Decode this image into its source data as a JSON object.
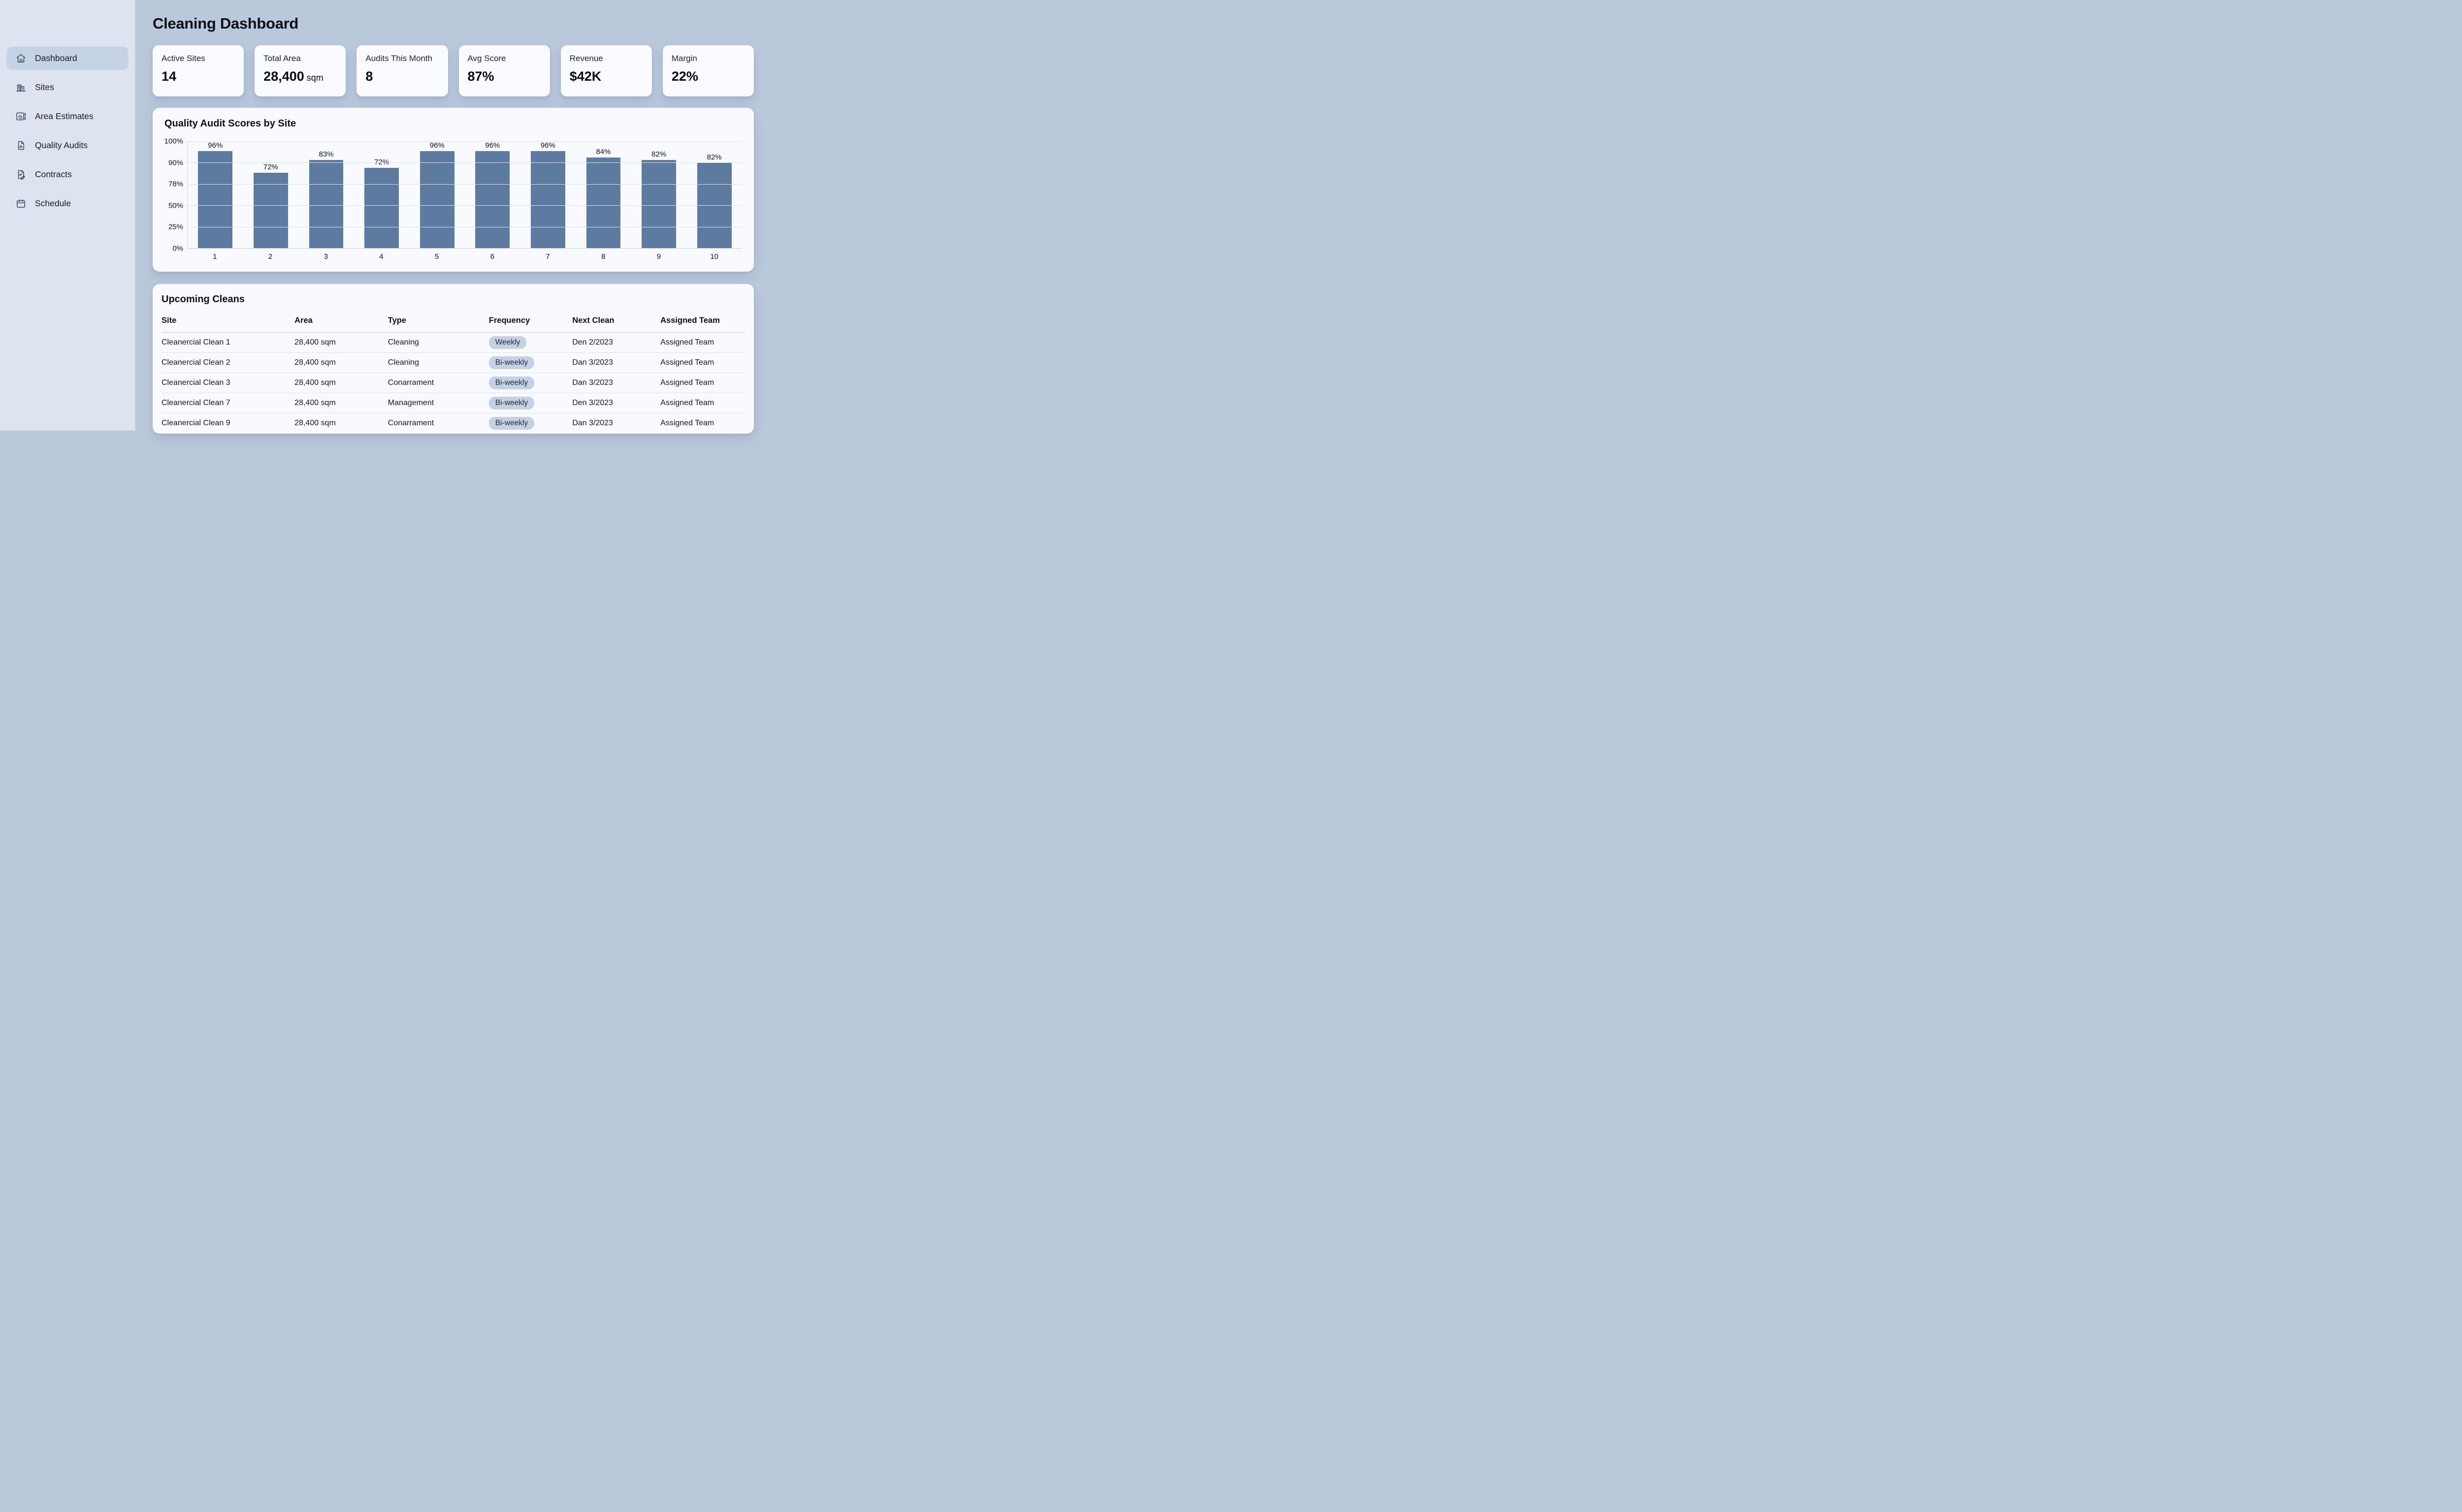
{
  "app": {
    "title": "Cleaning Dashboard"
  },
  "sidebar": {
    "items": [
      {
        "label": "Dashboard",
        "icon": "home-icon",
        "active": true
      },
      {
        "label": "Sites",
        "icon": "building-icon",
        "active": false
      },
      {
        "label": "Area Estimates",
        "icon": "area-estimate-icon",
        "active": false
      },
      {
        "label": "Quality Audits",
        "icon": "audit-document-icon",
        "active": false
      },
      {
        "label": "Contracts",
        "icon": "contract-icon",
        "active": false
      },
      {
        "label": "Schedule",
        "icon": "calendar-icon",
        "active": false
      }
    ]
  },
  "kpis": [
    {
      "label": "Active Sites",
      "value": "14",
      "suffix": ""
    },
    {
      "label": "Total Area",
      "value": "28,400",
      "suffix": " sqm"
    },
    {
      "label": "Audits This Month",
      "value": "8",
      "suffix": ""
    },
    {
      "label": "Avg Score",
      "value": "87%",
      "suffix": ""
    },
    {
      "label": "Revenue",
      "value": "$42K",
      "suffix": ""
    },
    {
      "label": "Margin",
      "value": "22%",
      "suffix": ""
    }
  ],
  "chart_data": {
    "type": "bar",
    "title": "Quality Audit Scores by Site",
    "xlabel": "",
    "ylabel": "",
    "categories": [
      "1",
      "2",
      "3",
      "4",
      "5",
      "6",
      "7",
      "8",
      "9",
      "10"
    ],
    "values": [
      96,
      72,
      83,
      72,
      96,
      96,
      96,
      84,
      82,
      82
    ],
    "data_labels": [
      "96%",
      "72%",
      "83%",
      "72%",
      "96%",
      "96%",
      "96%",
      "84%",
      "82%",
      "82%"
    ],
    "bar_render_heights_pct": [
      91.6,
      70.4,
      82.3,
      75.1,
      93.6,
      95.2,
      92.8,
      84.8,
      82.4,
      79.9
    ],
    "y_ticks": [
      "100%",
      "90%",
      "78%",
      "50%",
      "25%",
      "0%"
    ],
    "ylim": [
      0,
      100
    ],
    "grid": true,
    "legend": false,
    "bar_color": "#5d7ba0"
  },
  "table": {
    "title": "Upcoming Cleans",
    "columns": [
      "Site",
      "Area",
      "Type",
      "Frequency",
      "Next Clean",
      "Assigned Team"
    ],
    "rows": [
      {
        "site": "Cleanercial Clean 1",
        "area": "28,400 sqm",
        "type": "Cleaning",
        "frequency": "Weekly",
        "next_clean": "Den 2/2023",
        "team": "Assigned Team"
      },
      {
        "site": "Cleanercial Clean 2",
        "area": "28,400 sqm",
        "type": "Cleaning",
        "frequency": "Bi-weekly",
        "next_clean": "Dan 3/2023",
        "team": "Assigned Team"
      },
      {
        "site": "Cleanercial Clean 3",
        "area": "28,400 sqm",
        "type": "Conarrament",
        "frequency": "Bi-weekly",
        "next_clean": "Dan 3/2023",
        "team": "Assigned Team"
      },
      {
        "site": "Cleanercial Clean 7",
        "area": "28,400 sqm",
        "type": "Management",
        "frequency": "Bi-weekly",
        "next_clean": "Den 3/2023",
        "team": "Assigned Team"
      },
      {
        "site": "Cleanercial Clean 9",
        "area": "28,400 sqm",
        "type": "Conarrament",
        "frequency": "Bi-weekly",
        "next_clean": "Dan 3/2023",
        "team": "Assigned Team"
      }
    ]
  },
  "colors": {
    "backdrop": "#bac8dc",
    "sidebar_bg": "#dde4f0",
    "active_item_bg": "#c6d3e7",
    "panel_bg": "#f9fafd",
    "bar": "#5d7ba0",
    "pill_bg": "#c4d1e3"
  }
}
